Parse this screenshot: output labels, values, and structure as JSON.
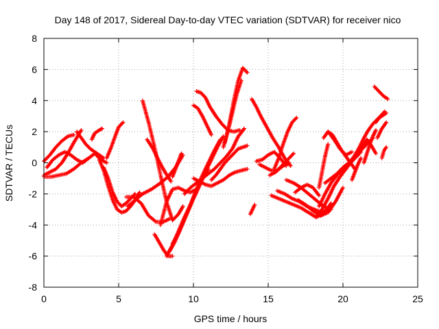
{
  "chart_data": {
    "type": "scatter",
    "title": "Day 148 of 2017, Sidereal Day-to-day VTEC variation (SDTVAR) for receiver nico",
    "xlabel": "GPS time / hours",
    "ylabel": "SDTVAR / TECUs",
    "xlim": [
      0,
      25
    ],
    "ylim": [
      -8,
      8
    ],
    "x_ticks": [
      "0",
      "5",
      "10",
      "15",
      "20",
      "25"
    ],
    "y_ticks": [
      "-8",
      "-6",
      "-4",
      "-2",
      "0",
      "2",
      "4",
      "6",
      "8"
    ],
    "grid": true,
    "marker": "+",
    "color": "#ff0000",
    "series": [
      {
        "x": [
          0.0,
          0.4,
          0.8,
          1.2,
          1.6,
          2.0,
          2.5
        ],
        "y": [
          -0.8,
          -0.6,
          -0.4,
          0.0,
          0.6,
          1.3,
          2.1
        ]
      },
      {
        "x": [
          0.0,
          0.5,
          1.0,
          1.5,
          2.0,
          2.5,
          3.0
        ],
        "y": [
          -0.9,
          -0.9,
          -0.8,
          -0.7,
          -0.4,
          0.0,
          0.3
        ]
      },
      {
        "x": [
          0.0,
          0.4,
          0.8,
          1.2,
          1.6,
          2.0
        ],
        "y": [
          0.1,
          0.5,
          1.0,
          1.4,
          1.7,
          1.8
        ]
      },
      {
        "x": [
          0.2,
          0.6,
          1.0,
          1.4,
          1.8,
          2.2,
          2.6,
          3.0,
          3.4,
          3.8,
          4.2
        ],
        "y": [
          -0.3,
          0.2,
          0.5,
          0.7,
          0.5,
          0.2,
          0.0,
          0.3,
          0.6,
          0.2,
          0.0
        ]
      },
      {
        "x": [
          2.2,
          2.5,
          2.8,
          3.1,
          3.4,
          3.7,
          4.0
        ],
        "y": [
          2.0,
          1.6,
          1.2,
          0.9,
          0.7,
          0.5,
          0.3
        ]
      },
      {
        "x": [
          3.2,
          3.4,
          3.7,
          3.9
        ],
        "y": [
          1.5,
          1.9,
          2.1,
          2.2
        ]
      },
      {
        "x": [
          4.2,
          4.5,
          4.8,
          5.0,
          5.3
        ],
        "y": [
          0.3,
          1.0,
          1.8,
          2.3,
          2.6
        ]
      },
      {
        "x": [
          4.0,
          4.3,
          4.6,
          4.9,
          5.2,
          5.5,
          5.8,
          6.1
        ],
        "y": [
          -0.3,
          -1.0,
          -1.9,
          -2.5,
          -2.8,
          -2.6,
          -2.3,
          -2.0
        ]
      },
      {
        "x": [
          3.7,
          4.0,
          4.3,
          4.6,
          4.9,
          5.2,
          5.5,
          5.8,
          6.1,
          6.4
        ],
        "y": [
          0.2,
          -0.5,
          -1.5,
          -2.4,
          -3.0,
          -3.2,
          -3.1,
          -2.8,
          -2.4,
          -1.9
        ]
      },
      {
        "x": [
          5.6,
          6.1,
          6.6,
          7.2,
          7.8,
          8.3,
          8.8,
          9.3
        ],
        "y": [
          -2.8,
          -2.4,
          -2.0,
          -1.7,
          -1.3,
          -0.9,
          -0.3,
          0.5
        ]
      },
      {
        "x": [
          5.5,
          6.0,
          6.5,
          7.0,
          7.5,
          8.0,
          8.4
        ],
        "y": [
          -2.2,
          -2.2,
          -2.6,
          -3.4,
          -3.8,
          -3.8,
          -3.6
        ]
      },
      {
        "x": [
          6.6,
          7.0,
          7.4,
          7.8,
          8.2,
          8.6,
          9.0,
          9.3
        ],
        "y": [
          4.0,
          2.6,
          1.0,
          -0.8,
          -2.5,
          -3.7,
          -3.3,
          -2.8
        ]
      },
      {
        "x": [
          6.9,
          7.3,
          7.7,
          8.1,
          8.5
        ],
        "y": [
          1.5,
          0.9,
          0.1,
          -0.6,
          -1.2
        ]
      },
      {
        "x": [
          7.4,
          7.7,
          8.0,
          8.3,
          8.6
        ],
        "y": [
          -4.6,
          -5.1,
          -5.6,
          -6.0,
          -6.0
        ]
      },
      {
        "x": [
          7.8,
          8.2,
          8.6,
          9.0,
          9.4,
          9.8,
          10.2
        ],
        "y": [
          -4.0,
          -2.5,
          -1.7,
          -1.6,
          -1.8,
          -1.9,
          -1.7
        ]
      },
      {
        "x": [
          8.2,
          8.6,
          9.0,
          9.4,
          9.8,
          10.2,
          10.6,
          11.0
        ],
        "y": [
          -6.0,
          -5.3,
          -4.4,
          -3.5,
          -2.7,
          -1.8,
          -1.0,
          -0.4
        ]
      },
      {
        "x": [
          8.4,
          8.8,
          9.2,
          9.6,
          10.0,
          10.4,
          10.8,
          11.2,
          11.6,
          12.0
        ],
        "y": [
          -5.7,
          -5.0,
          -4.1,
          -3.2,
          -2.3,
          -1.5,
          -0.6,
          0.2,
          1.0,
          1.7
        ]
      },
      {
        "x": [
          8.6,
          9.0,
          9.4,
          9.8,
          10.2,
          10.6,
          11.0,
          11.4,
          11.8
        ],
        "y": [
          -5.2,
          -4.5,
          -3.6,
          -2.7,
          -1.7,
          -0.8,
          0.0,
          0.8,
          1.5
        ]
      },
      {
        "x": [
          9.4,
          9.8,
          10.2,
          10.6,
          11.0,
          11.4,
          11.8,
          12.2,
          12.6,
          13.0,
          13.4
        ],
        "y": [
          -2.0,
          -1.6,
          -1.3,
          -1.0,
          -0.7,
          -0.4,
          0.0,
          0.4,
          0.9,
          1.7,
          2.2
        ]
      },
      {
        "x": [
          8.6,
          8.8,
          9.0,
          9.2
        ],
        "y": [
          -0.9,
          -0.4,
          0.1,
          0.6
        ]
      },
      {
        "x": [
          10.0,
          10.4,
          10.8,
          11.2,
          11.6,
          12.0,
          12.4,
          12.8,
          13.2,
          13.6
        ],
        "y": [
          -1.0,
          -1.2,
          -1.4,
          -1.5,
          -1.3,
          -1.1,
          -0.8,
          -0.6,
          -0.5,
          -0.4
        ]
      },
      {
        "x": [
          10.2,
          10.5,
          10.8,
          11.1,
          11.5,
          11.9,
          12.3,
          12.7,
          13.1
        ],
        "y": [
          4.6,
          4.5,
          4.2,
          3.6,
          3.0,
          2.5,
          2.1,
          2.0,
          2.1
        ]
      },
      {
        "x": [
          10.0,
          10.3,
          10.6,
          10.9,
          11.2
        ],
        "y": [
          3.7,
          3.5,
          3.0,
          2.4,
          1.8
        ]
      },
      {
        "x": [
          11.2,
          11.5,
          11.8,
          12.1,
          12.4,
          12.7,
          13.0,
          13.3,
          13.6
        ],
        "y": [
          -1.1,
          -0.8,
          -0.4,
          0.0,
          0.3,
          0.6,
          0.9,
          1.0,
          1.1
        ]
      },
      {
        "x": [
          12.1,
          12.4,
          12.7,
          13.0,
          13.3,
          13.6
        ],
        "y": [
          1.3,
          2.5,
          4.0,
          5.3,
          6.1,
          5.8
        ]
      },
      {
        "x": [
          12.0,
          12.3,
          12.6,
          12.9,
          13.2
        ],
        "y": [
          1.0,
          2.0,
          3.2,
          4.4,
          5.3
        ]
      },
      {
        "x": [
          13.8,
          14.1
        ],
        "y": [
          -3.3,
          -2.7
        ]
      },
      {
        "x": [
          13.9,
          14.2,
          14.5,
          14.9,
          15.3,
          15.7,
          16.1,
          16.5
        ],
        "y": [
          4.1,
          3.6,
          3.0,
          2.3,
          1.6,
          1.0,
          0.3,
          -0.2
        ]
      },
      {
        "x": [
          14.2,
          14.6,
          15.0,
          15.4,
          15.8,
          16.2
        ],
        "y": [
          0.1,
          0.2,
          0.5,
          0.7,
          0.3,
          -0.2
        ]
      },
      {
        "x": [
          14.4,
          14.8,
          15.2,
          15.6,
          16.0,
          16.4
        ],
        "y": [
          -0.1,
          -0.3,
          -0.5,
          -0.5,
          -0.2,
          0.0
        ]
      },
      {
        "x": [
          15.1,
          15.5,
          15.9,
          16.3,
          16.7
        ],
        "y": [
          -0.8,
          -0.6,
          -0.2,
          0.2,
          0.6
        ]
      },
      {
        "x": [
          15.4,
          15.7,
          16.0,
          16.3,
          16.6,
          16.9
        ],
        "y": [
          -0.4,
          0.3,
          1.2,
          2.0,
          2.6,
          2.9
        ]
      },
      {
        "x": [
          15.2,
          15.7,
          16.2,
          16.7,
          17.2,
          17.7,
          18.2,
          18.7,
          19.2
        ],
        "y": [
          -2.1,
          -2.3,
          -2.5,
          -2.7,
          -2.9,
          -3.2,
          -3.5,
          -3.3,
          -2.6
        ]
      },
      {
        "x": [
          15.6,
          16.1,
          16.6,
          17.1,
          17.6,
          18.1,
          18.6,
          19.0
        ],
        "y": [
          -1.8,
          -2.0,
          -2.3,
          -2.5,
          -2.8,
          -3.0,
          -3.2,
          -3.0
        ]
      },
      {
        "x": [
          16.2,
          16.7,
          17.2,
          17.7,
          18.2,
          18.7,
          19.2
        ],
        "y": [
          -1.1,
          -1.3,
          -1.6,
          -2.0,
          -2.4,
          -2.8,
          -3.0
        ]
      },
      {
        "x": [
          16.8,
          17.2,
          17.6,
          18.0,
          18.4
        ],
        "y": [
          -1.9,
          -1.6,
          -1.4,
          -1.6,
          -2.1
        ]
      },
      {
        "x": [
          17.0,
          17.5,
          18.0,
          18.5,
          19.0,
          19.5,
          20.0
        ],
        "y": [
          -2.4,
          -2.7,
          -3.1,
          -3.4,
          -3.2,
          -2.5,
          -1.6
        ]
      },
      {
        "x": [
          18.2,
          18.6,
          19.0,
          19.4,
          19.8,
          20.2,
          20.6,
          21.0
        ],
        "y": [
          -3.5,
          -3.0,
          -2.3,
          -1.5,
          -0.9,
          -0.4,
          0.1,
          0.5
        ]
      },
      {
        "x": [
          18.4,
          18.8,
          19.2,
          19.6,
          20.0,
          20.4,
          20.8,
          21.2
        ],
        "y": [
          -2.8,
          -2.0,
          -1.3,
          -0.8,
          -0.4,
          -0.1,
          0.3,
          0.7
        ]
      },
      {
        "x": [
          18.8,
          19.2,
          19.6,
          20.0,
          20.4,
          20.8,
          21.2,
          21.6,
          22.0
        ],
        "y": [
          -1.3,
          -1.0,
          -0.7,
          -0.3,
          0.0,
          0.4,
          0.8,
          1.2,
          1.6
        ]
      },
      {
        "x": [
          18.4,
          18.6,
          18.8,
          19.0
        ],
        "y": [
          -1.6,
          -0.6,
          0.4,
          1.2
        ]
      },
      {
        "x": [
          18.7,
          19.0,
          19.3,
          19.6,
          19.9,
          20.2,
          20.5,
          20.8
        ],
        "y": [
          1.6,
          2.0,
          1.8,
          1.3,
          0.8,
          0.4,
          0.0,
          -0.4
        ]
      },
      {
        "x": [
          19.0,
          19.4,
          19.8,
          20.2,
          20.6
        ],
        "y": [
          2.0,
          1.5,
          0.9,
          0.5,
          0.7
        ]
      },
      {
        "x": [
          20.2,
          20.5,
          20.8,
          21.1,
          21.4,
          21.7,
          22.0,
          22.3,
          22.6,
          22.9
        ],
        "y": [
          -0.3,
          0.1,
          0.5,
          1.0,
          1.6,
          2.1,
          2.5,
          2.8,
          3.0,
          3.2
        ]
      },
      {
        "x": [
          20.6,
          20.8,
          21.0,
          21.2
        ],
        "y": [
          -1.1,
          -0.6,
          -0.1,
          0.3
        ]
      },
      {
        "x": [
          21.0,
          21.3,
          21.6,
          21.9,
          22.2
        ],
        "y": [
          0.5,
          1.1,
          1.5,
          1.1,
          0.6
        ]
      },
      {
        "x": [
          21.4,
          21.6,
          21.8,
          22.0,
          22.2
        ],
        "y": [
          0.0,
          0.6,
          1.2,
          1.7,
          2.1
        ]
      },
      {
        "x": [
          22.1,
          22.4,
          22.7,
          23.0
        ],
        "y": [
          4.9,
          4.6,
          4.3,
          4.1
        ]
      },
      {
        "x": [
          22.2,
          22.5,
          22.8
        ],
        "y": [
          2.6,
          3.0,
          3.3
        ]
      },
      {
        "x": [
          22.3,
          22.6,
          22.9
        ],
        "y": [
          1.6,
          2.2,
          2.6
        ]
      },
      {
        "x": [
          22.6,
          22.75,
          22.9
        ],
        "y": [
          0.3,
          0.8,
          1.0
        ]
      }
    ]
  }
}
